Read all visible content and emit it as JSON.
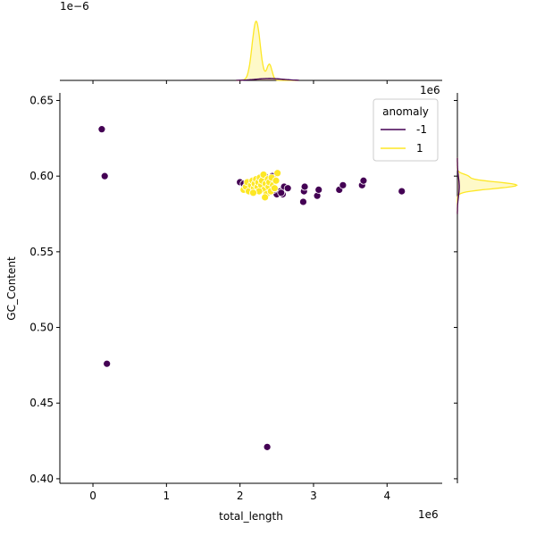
{
  "chart_data": {
    "type": "scatter",
    "xlabel": "total_length",
    "ylabel": "GC_Content",
    "x_offset_label": "1e6",
    "y_offset_label": "",
    "top_marginal_offset_label": "1e−6",
    "right_marginal_offset_label": "1e6",
    "xlim": [
      -450000,
      4750000
    ],
    "ylim": [
      0.397,
      0.655
    ],
    "x_ticks": [
      0,
      1000000,
      2000000,
      3000000,
      4000000
    ],
    "x_tick_labels": [
      "0",
      "1",
      "2",
      "3",
      "4"
    ],
    "y_ticks": [
      0.4,
      0.45,
      0.5,
      0.55,
      0.6,
      0.65
    ],
    "y_tick_labels": [
      "0.40",
      "0.45",
      "0.50",
      "0.55",
      "0.60",
      "0.65"
    ],
    "legend": {
      "title": "anomaly",
      "placement": "top-right",
      "entries": [
        {
          "label": "-1",
          "color": "#440154"
        },
        {
          "label": "1",
          "color": "#fde725"
        }
      ]
    },
    "series": [
      {
        "name": "-1",
        "color": "#440154",
        "points": [
          [
            120000,
            0.631
          ],
          [
            160000,
            0.6
          ],
          [
            190000,
            0.476
          ],
          [
            2370000,
            0.421
          ],
          [
            2000000,
            0.596
          ],
          [
            2050000,
            0.595
          ],
          [
            2100000,
            0.593
          ],
          [
            2340000,
            0.6
          ],
          [
            2440000,
            0.6
          ],
          [
            2550000,
            0.59
          ],
          [
            2600000,
            0.593
          ],
          [
            2650000,
            0.592
          ],
          [
            2500000,
            0.588
          ],
          [
            2580000,
            0.588
          ],
          [
            2860000,
            0.583
          ],
          [
            2870000,
            0.59
          ],
          [
            2880000,
            0.593
          ],
          [
            3050000,
            0.587
          ],
          [
            3070000,
            0.591
          ],
          [
            3350000,
            0.591
          ],
          [
            3400000,
            0.594
          ],
          [
            3660000,
            0.594
          ],
          [
            3680000,
            0.597
          ],
          [
            4200000,
            0.59
          ],
          [
            2300000,
            0.592
          ],
          [
            2460000,
            0.591
          ],
          [
            2560000,
            0.589
          ]
        ]
      },
      {
        "name": "1",
        "color": "#fde725",
        "points": [
          [
            2050000,
            0.591
          ],
          [
            2080000,
            0.593
          ],
          [
            2100000,
            0.596
          ],
          [
            2120000,
            0.59
          ],
          [
            2150000,
            0.594
          ],
          [
            2170000,
            0.597
          ],
          [
            2190000,
            0.592
          ],
          [
            2200000,
            0.595
          ],
          [
            2220000,
            0.598
          ],
          [
            2240000,
            0.593
          ],
          [
            2250000,
            0.596
          ],
          [
            2270000,
            0.599
          ],
          [
            2290000,
            0.594
          ],
          [
            2300000,
            0.597
          ],
          [
            2320000,
            0.601
          ],
          [
            2330000,
            0.591
          ],
          [
            2350000,
            0.595
          ],
          [
            2360000,
            0.588
          ],
          [
            2380000,
            0.598
          ],
          [
            2390000,
            0.593
          ],
          [
            2400000,
            0.596
          ],
          [
            2420000,
            0.59
          ],
          [
            2430000,
            0.599
          ],
          [
            2450000,
            0.594
          ],
          [
            2470000,
            0.592
          ],
          [
            2490000,
            0.597
          ],
          [
            2510000,
            0.602
          ],
          [
            2260000,
            0.59
          ],
          [
            2180000,
            0.589
          ],
          [
            2340000,
            0.586
          ]
        ]
      }
    ],
    "marginal_x": {
      "series": [
        {
          "name": "1",
          "color": "#fde725",
          "density_peak_x": 2220000,
          "relative_peak": 1.0
        },
        {
          "name": "-1",
          "color": "#440154",
          "density_peak_x": 2400000,
          "relative_peak": 0.03
        }
      ]
    },
    "marginal_y": {
      "series": [
        {
          "name": "1",
          "color": "#fde725",
          "density_peak_y": 0.594,
          "relative_peak": 1.0
        },
        {
          "name": "-1",
          "color": "#440154",
          "density_peak_y": 0.593,
          "relative_peak": 0.03
        }
      ]
    }
  }
}
